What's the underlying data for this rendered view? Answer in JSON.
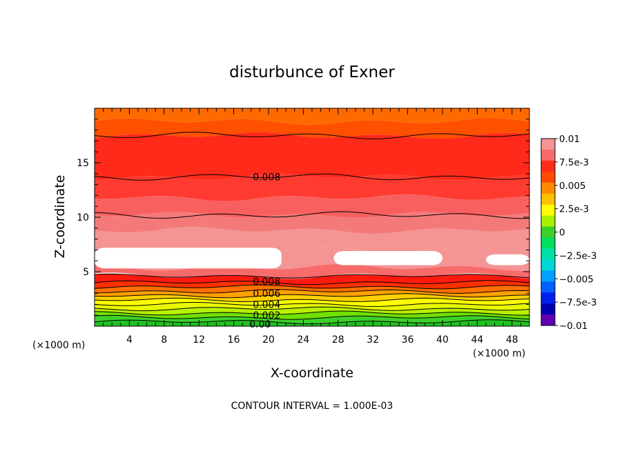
{
  "chart_data": {
    "type": "heatmap",
    "title": "disturbunce of Exner",
    "xlabel": "X-coordinate",
    "ylabel": "Z-coordinate",
    "x_unit_left": "(×1000 m)",
    "x_unit_right": "(×1000 m)",
    "xlim": [
      0,
      50
    ],
    "ylim": [
      0,
      20
    ],
    "x_ticks": [
      4,
      8,
      12,
      16,
      20,
      24,
      28,
      32,
      36,
      40,
      44,
      48
    ],
    "y_ticks": [
      5,
      10,
      15
    ],
    "footer": "CONTOUR INTERVAL = 1.000E-03",
    "contour_labels": [
      {
        "text": "0.008",
        "x": 18.2,
        "z": 13.7
      },
      {
        "text": "0.008",
        "x": 18.2,
        "z": 4.1
      },
      {
        "text": "0.006",
        "x": 18.2,
        "z": 3.0
      },
      {
        "text": "0.004",
        "x": 18.2,
        "z": 2.0
      },
      {
        "text": "0.002",
        "x": 18.2,
        "z": 1.0
      },
      {
        "text": "0.00",
        "x": 17.8,
        "z": 0.2
      }
    ],
    "colorbar": {
      "ticks": [
        "0.01",
        "7.5e-3",
        "0.005",
        "2.5e-3",
        "0",
        "−2.5e-3",
        "−0.005",
        "−7.5e-3",
        "−0.01"
      ],
      "colors": [
        "#f49494",
        "#f86b6b",
        "#ff2a1a",
        "#ff4a00",
        "#ff8a00",
        "#ffc000",
        "#ffff00",
        "#a8f000",
        "#3ed02a",
        "#00e060",
        "#00e0a8",
        "#00d8d8",
        "#00a0ff",
        "#0060ff",
        "#0020f0",
        "#0000b0",
        "#6000b0"
      ]
    },
    "bands": [
      {
        "z0": 0.0,
        "z1": 0.4,
        "color": "#20c020"
      },
      {
        "z0": 0.4,
        "z1": 0.8,
        "color": "#3ed02a"
      },
      {
        "z0": 0.8,
        "z1": 1.2,
        "color": "#70e000"
      },
      {
        "z0": 1.2,
        "z1": 1.6,
        "color": "#b8f000"
      },
      {
        "z0": 1.6,
        "z1": 2.0,
        "color": "#e8f800"
      },
      {
        "z0": 2.0,
        "z1": 2.4,
        "color": "#ffff00"
      },
      {
        "z0": 2.4,
        "z1": 2.8,
        "color": "#ffd000"
      },
      {
        "z0": 2.8,
        "z1": 3.2,
        "color": "#ffa000"
      },
      {
        "z0": 3.2,
        "z1": 3.6,
        "color": "#ff7000"
      },
      {
        "z0": 3.6,
        "z1": 4.0,
        "color": "#ff3000"
      },
      {
        "z0": 4.0,
        "z1": 4.6,
        "color": "#ff1a10"
      },
      {
        "z0": 4.6,
        "z1": 5.4,
        "color": "#f86b6b"
      },
      {
        "z0": 5.4,
        "z1": 7.0,
        "color": "#f49494"
      },
      {
        "z0": 7.0,
        "z1": 8.8,
        "color": "#f49494"
      },
      {
        "z0": 8.8,
        "z1": 10.2,
        "color": "#f47a7a"
      },
      {
        "z0": 10.2,
        "z1": 11.8,
        "color": "#f86060"
      },
      {
        "z0": 11.8,
        "z1": 13.7,
        "color": "#ff3a30"
      },
      {
        "z0": 13.7,
        "z1": 17.5,
        "color": "#ff2a1a"
      },
      {
        "z0": 17.5,
        "z1": 18.8,
        "color": "#ff5000"
      },
      {
        "z0": 18.8,
        "z1": 20.0,
        "color": "#ff6a00"
      }
    ],
    "white_regions": [
      {
        "x0": 0.0,
        "x1": 21.5,
        "z0": 5.3,
        "z1": 7.2
      },
      {
        "x0": 27.5,
        "x1": 40.0,
        "z0": 5.6,
        "z1": 6.9
      },
      {
        "x0": 45.0,
        "x1": 50.0,
        "z0": 5.6,
        "z1": 6.6
      }
    ],
    "contour_lines_z": [
      0.4,
      0.8,
      1.2,
      1.6,
      2.0,
      2.4,
      2.8,
      3.2,
      3.6,
      4.0,
      4.6,
      10.2,
      13.7,
      17.5
    ]
  }
}
